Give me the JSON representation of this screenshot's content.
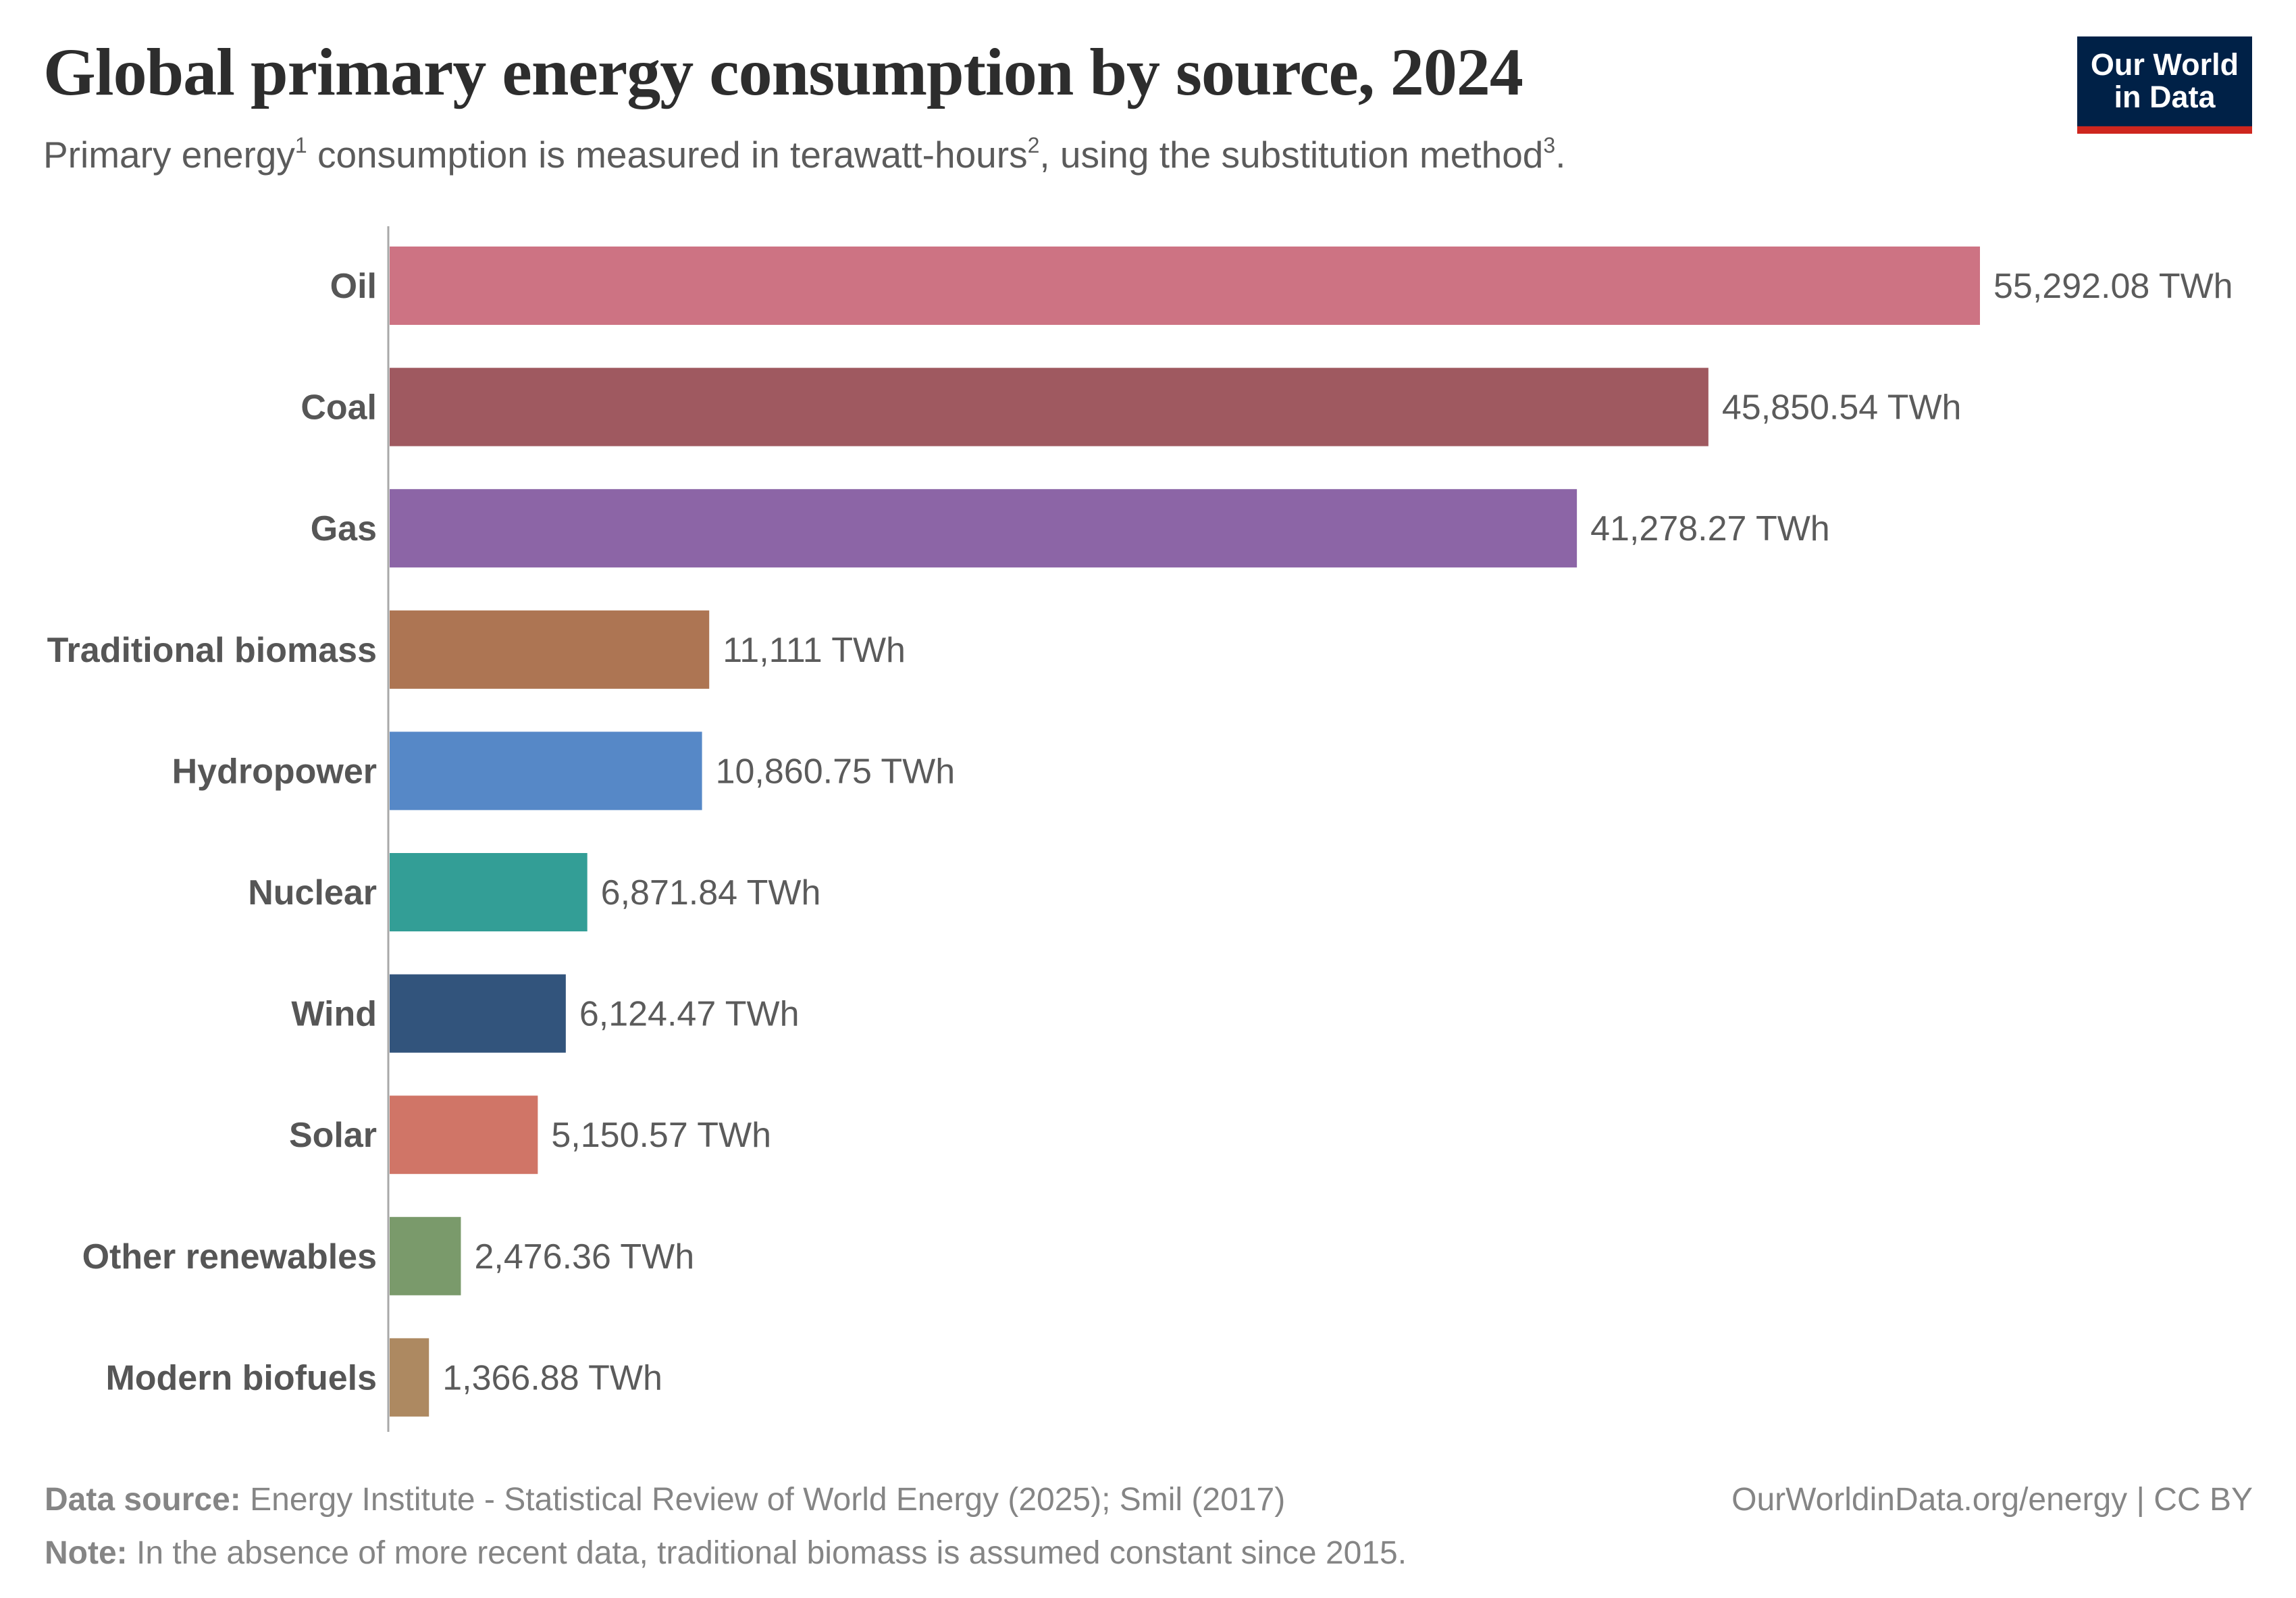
{
  "header": {
    "title": "Global primary energy consumption by source, 2024",
    "subtitle_parts": [
      {
        "text": "Primary energy",
        "sup": "1"
      },
      {
        "text": " consumption is measured in terawatt-hours",
        "sup": "2"
      },
      {
        "text": ", using the substitution method",
        "sup": "3"
      },
      {
        "text": ".",
        "sup": ""
      }
    ]
  },
  "logo": {
    "line1": "Our World",
    "line2": "in Data",
    "bg_color": "#002147",
    "accent_color": "#ce261e"
  },
  "footer": {
    "source_label": "Data source:",
    "source_text": " Energy Institute - Statistical Review of World Energy (2025); Smil (2017)",
    "note_label": "Note:",
    "note_text": " In the absence of more recent data, traditional biomass is assumed constant since 2015.",
    "credit": "OurWorldinData.org/energy | CC BY"
  },
  "chart_data": {
    "type": "bar",
    "orientation": "horizontal",
    "title": "Global primary energy consumption by source, 2024",
    "xlabel": "",
    "ylabel": "",
    "unit": "TWh",
    "grid": false,
    "xlim": [
      0,
      55292.08
    ],
    "categories": [
      "Oil",
      "Coal",
      "Gas",
      "Traditional biomass",
      "Hydropower",
      "Nuclear",
      "Wind",
      "Solar",
      "Other renewables",
      "Modern biofuels"
    ],
    "values": [
      55292.08,
      45850.54,
      41278.27,
      11111,
      10860.75,
      6871.84,
      6124.47,
      5150.57,
      2476.36,
      1366.88
    ],
    "value_labels": [
      "55,292.08 TWh",
      "45,850.54 TWh",
      "41,278.27 TWh",
      "11,111 TWh",
      "10,860.75 TWh",
      "6,871.84 TWh",
      "6,124.47 TWh",
      "5,150.57 TWh",
      "2,476.36 TWh",
      "1,366.88 TWh"
    ],
    "colors": [
      "#cd7383",
      "#9f5960",
      "#8c65a6",
      "#ad7553",
      "#5688c7",
      "#339e96",
      "#32547c",
      "#d07567",
      "#7a9a6b",
      "#ad8961"
    ]
  }
}
